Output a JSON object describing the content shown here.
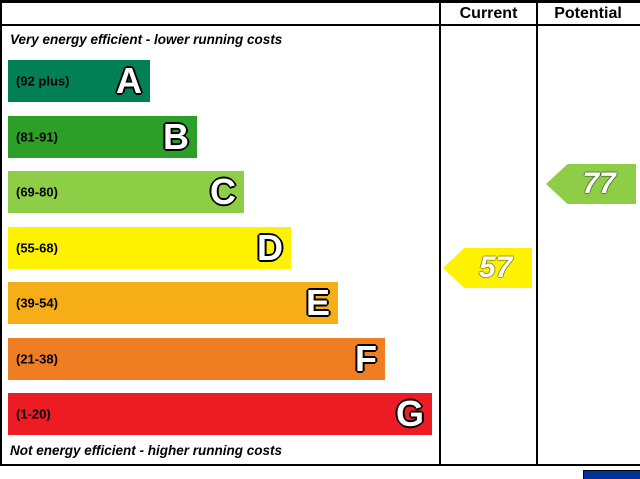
{
  "header": {
    "current_label": "Current",
    "potential_label": "Potential"
  },
  "notes": {
    "top": "Very energy efficient - lower running costs",
    "bottom": "Not energy efficient - higher running costs"
  },
  "chart_data": {
    "type": "bar",
    "description": "Energy efficiency rating bands A-G with current and potential rating markers",
    "bands": [
      {
        "letter": "A",
        "range": "(92 plus)",
        "color": "#008054"
      },
      {
        "letter": "B",
        "range": "(81-91)",
        "color": "#2c9f29"
      },
      {
        "letter": "C",
        "range": "(69-80)",
        "color": "#8dce46"
      },
      {
        "letter": "D",
        "range": "(55-68)",
        "color": "#fff200"
      },
      {
        "letter": "E",
        "range": "(39-54)",
        "color": "#f7ae16"
      },
      {
        "letter": "F",
        "range": "(21-38)",
        "color": "#ef7d22"
      },
      {
        "letter": "G",
        "range": "(1-20)",
        "color": "#ed1c24"
      }
    ],
    "markers": {
      "current": {
        "value": "57",
        "band": "D",
        "color": "#fff200"
      },
      "potential": {
        "value": "77",
        "band": "C",
        "color": "#8dce46"
      }
    }
  },
  "colors": {
    "eu_blue": "#003399"
  }
}
